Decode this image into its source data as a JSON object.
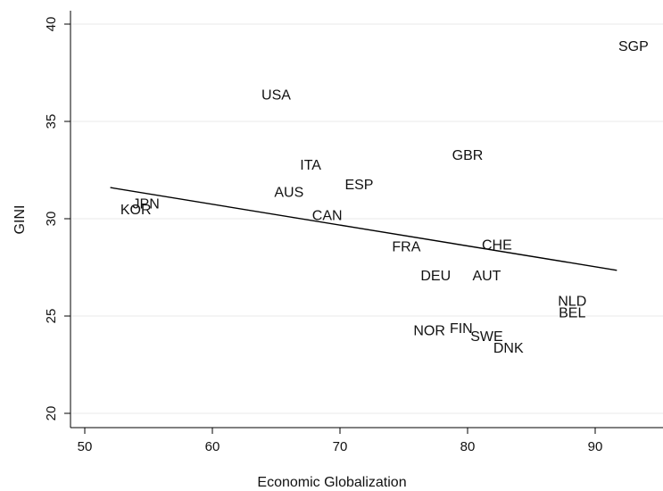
{
  "chart_data": {
    "type": "scatter",
    "xlabel": "Economic Globalization",
    "ylabel": "GINI",
    "xlim": [
      50,
      94
    ],
    "ylim": [
      20,
      40
    ],
    "x_ticks": [
      50,
      60,
      70,
      80,
      90
    ],
    "y_ticks": [
      20,
      25,
      30,
      35,
      40
    ],
    "grid": "horizontal",
    "marker": "text-label",
    "points": [
      {
        "label": "SGP",
        "x": 93.0,
        "y": 38.9
      },
      {
        "label": "USA",
        "x": 65.0,
        "y": 36.4
      },
      {
        "label": "GBR",
        "x": 80.0,
        "y": 33.3
      },
      {
        "label": "ITA",
        "x": 67.7,
        "y": 32.8
      },
      {
        "label": "ESP",
        "x": 71.5,
        "y": 31.8
      },
      {
        "label": "AUS",
        "x": 66.0,
        "y": 31.4
      },
      {
        "label": "JPN",
        "x": 54.8,
        "y": 30.8
      },
      {
        "label": "KOR",
        "x": 54.0,
        "y": 30.5
      },
      {
        "label": "CAN",
        "x": 69.0,
        "y": 30.2
      },
      {
        "label": "FRA",
        "x": 75.2,
        "y": 28.6
      },
      {
        "label": "CHE",
        "x": 82.3,
        "y": 28.7
      },
      {
        "label": "DEU",
        "x": 77.5,
        "y": 27.1
      },
      {
        "label": "AUT",
        "x": 81.5,
        "y": 27.1
      },
      {
        "label": "NLD",
        "x": 88.2,
        "y": 25.8
      },
      {
        "label": "BEL",
        "x": 88.2,
        "y": 25.2
      },
      {
        "label": "NOR",
        "x": 77.0,
        "y": 24.3
      },
      {
        "label": "FIN",
        "x": 79.5,
        "y": 24.4
      },
      {
        "label": "SWE",
        "x": 81.5,
        "y": 24.0
      },
      {
        "label": "DNK",
        "x": 83.2,
        "y": 23.4
      }
    ],
    "fit_line": {
      "x": [
        52,
        91.7
      ],
      "y": [
        31.6,
        27.35
      ]
    }
  }
}
